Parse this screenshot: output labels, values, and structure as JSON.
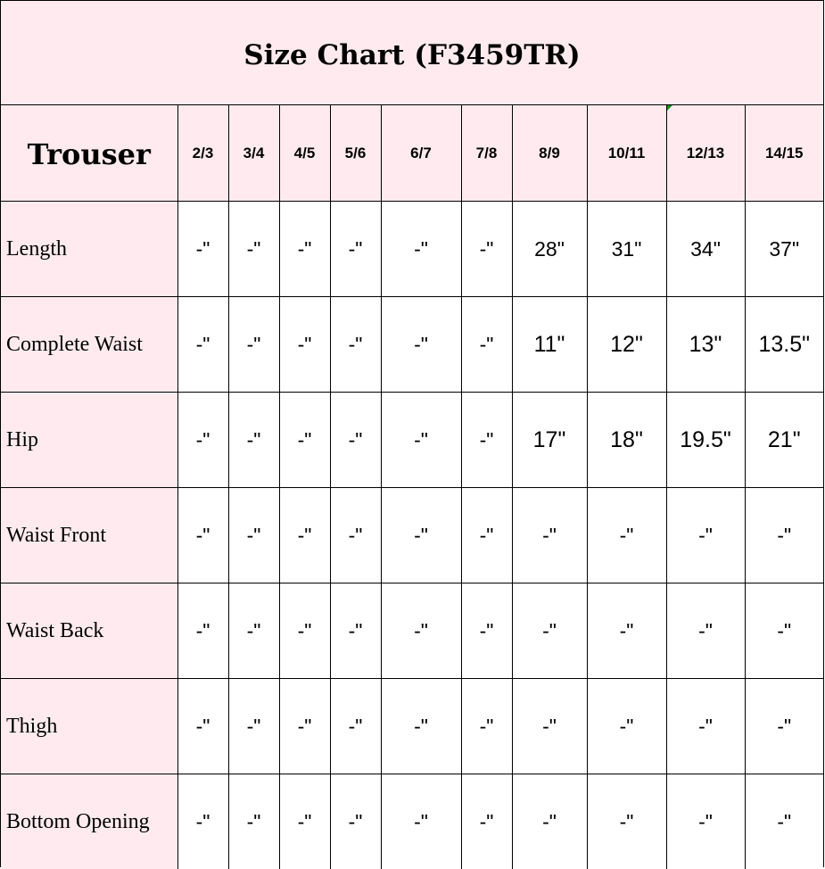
{
  "title": "Size Chart (F3459TR)",
  "header": {
    "corner": "Trouser",
    "sizes": [
      "2/3",
      "3/4",
      "4/5",
      "5/6",
      "6/7",
      "7/8",
      "8/9",
      "10/11",
      "12/13",
      "14/15"
    ]
  },
  "rows": [
    {
      "label": "Length",
      "values": [
        "-\"",
        "-\"",
        "-\"",
        "-\"",
        "-\"",
        "-\"",
        "28\"",
        "31\"",
        "34\"",
        "37\""
      ]
    },
    {
      "label": "Complete Waist",
      "values": [
        "-\"",
        "-\"",
        "-\"",
        "-\"",
        "-\"",
        "-\"",
        "11\"",
        "12\"",
        "13\"",
        "13.5\""
      ]
    },
    {
      "label": "Hip",
      "values": [
        "-\"",
        "-\"",
        "-\"",
        "-\"",
        "-\"",
        "-\"",
        "17\"",
        "18\"",
        "19.5\"",
        "21\""
      ]
    },
    {
      "label": "Waist Front",
      "values": [
        "-\"",
        "-\"",
        "-\"",
        "-\"",
        "-\"",
        "-\"",
        "-\"",
        "-\"",
        "-\"",
        "-\""
      ]
    },
    {
      "label": "Waist Back",
      "values": [
        "-\"",
        "-\"",
        "-\"",
        "-\"",
        "-\"",
        "-\"",
        "-\"",
        "-\"",
        "-\"",
        "-\""
      ]
    },
    {
      "label": "Thigh",
      "values": [
        "-\"",
        "-\"",
        "-\"",
        "-\"",
        "-\"",
        "-\"",
        "-\"",
        "-\"",
        "-\"",
        "-\""
      ]
    },
    {
      "label": "Bottom Opening",
      "values": [
        "-\"",
        "-\"",
        "-\"",
        "-\"",
        "-\"",
        "-\"",
        "-\"",
        "-\"",
        "-\"",
        "-\""
      ]
    }
  ],
  "colors": {
    "header_bg": "#ffebef",
    "cell_bg": "#ffffff",
    "grid": "#000000"
  }
}
